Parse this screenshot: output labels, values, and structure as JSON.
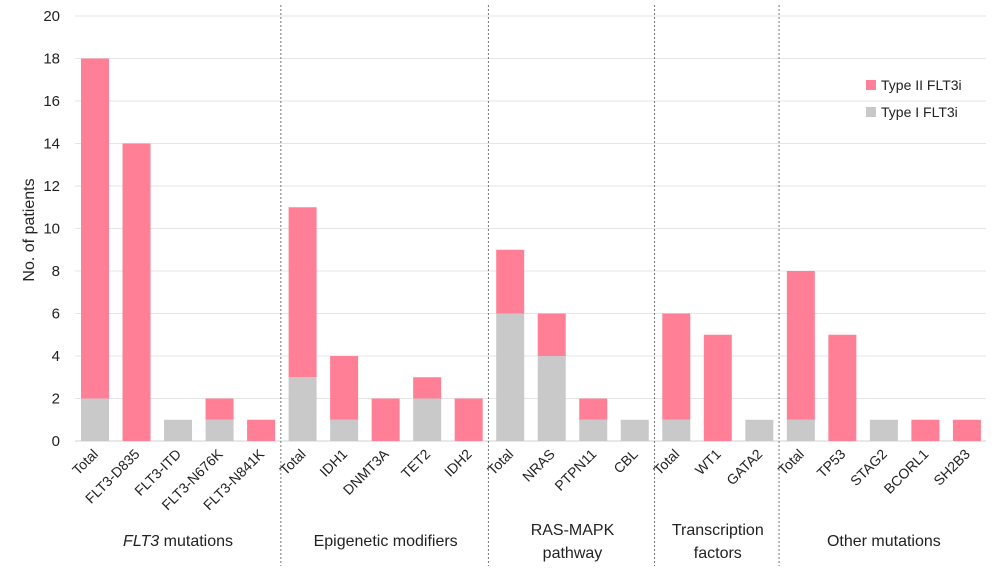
{
  "chart_data": {
    "type": "bar",
    "stacked": true,
    "ylabel": "No. of patients",
    "ylim": [
      0,
      20
    ],
    "yticks": [
      0,
      2,
      4,
      6,
      8,
      10,
      12,
      14,
      16,
      18,
      20
    ],
    "grid": true,
    "legend_position": "top-right",
    "groups": [
      {
        "label": "FLT3 mutations",
        "label_italic_part": "FLT3",
        "label_rest": " mutations",
        "categories": [
          "Total",
          "FLT3-D835",
          "FLT3-ITD",
          "FLT3-N676K",
          "FLT3-N841K"
        ]
      },
      {
        "label": "Epigenetic modifiers",
        "categories": [
          "Total",
          "IDH1",
          "DNMT3A",
          "TET2",
          "IDH2"
        ]
      },
      {
        "label": "RAS-MAPK pathway",
        "label_lines": [
          "RAS-MAPK",
          "pathway"
        ],
        "categories": [
          "Total",
          "NRAS",
          "PTPN11",
          "CBL"
        ]
      },
      {
        "label": "Transcription factors",
        "label_lines": [
          "Transcription",
          "factors"
        ],
        "categories": [
          "Total",
          "WT1",
          "GATA2"
        ]
      },
      {
        "label": "Other mutations",
        "categories": [
          "Total",
          "TP53",
          "STAG2",
          "BCORL1",
          "SH2B3"
        ]
      }
    ],
    "categories": [
      "Total",
      "FLT3-D835",
      "FLT3-ITD",
      "FLT3-N676K",
      "FLT3-N841K",
      "Total",
      "IDH1",
      "DNMT3A",
      "TET2",
      "IDH2",
      "Total",
      "NRAS",
      "PTPN11",
      "CBL",
      "Total",
      "WT1",
      "GATA2",
      "Total",
      "TP53",
      "STAG2",
      "BCORL1",
      "SH2B3"
    ],
    "series": [
      {
        "name": "Type I FLT3i",
        "color": "#C9C9C9",
        "values": [
          2,
          0,
          1,
          1,
          0,
          3,
          1,
          0,
          2,
          0,
          6,
          4,
          1,
          1,
          1,
          0,
          1,
          1,
          0,
          1,
          0,
          0
        ]
      },
      {
        "name": "Type II FLT3i",
        "color": "#FF8096",
        "values": [
          16,
          14,
          0,
          1,
          1,
          8,
          3,
          2,
          1,
          2,
          3,
          2,
          1,
          0,
          5,
          5,
          0,
          7,
          5,
          0,
          1,
          1
        ]
      }
    ],
    "legend_order": [
      "Type II FLT3i",
      "Type I FLT3i"
    ]
  }
}
